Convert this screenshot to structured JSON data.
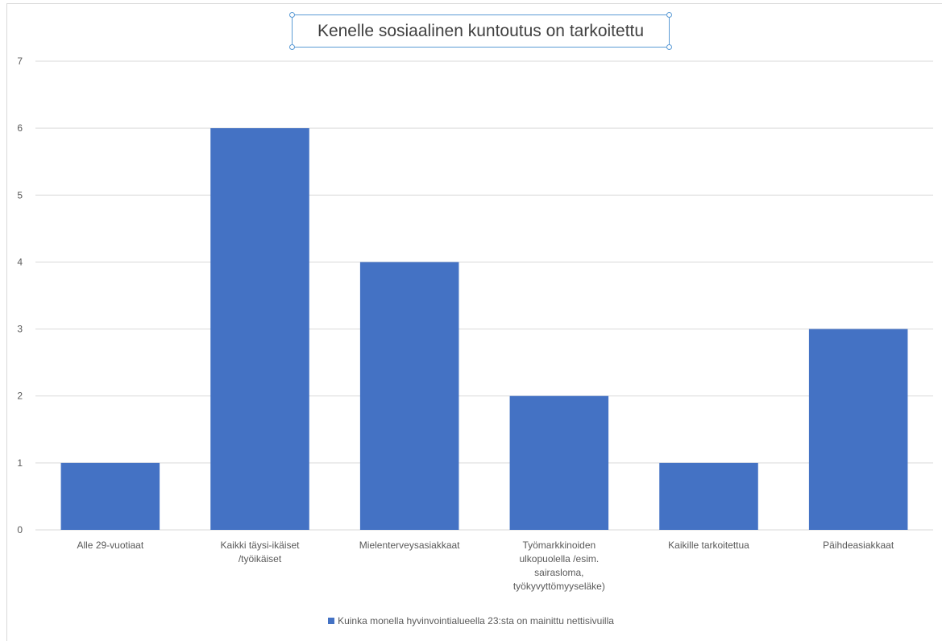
{
  "chart_data": {
    "type": "bar",
    "title": "Kenelle sosiaalinen kuntoutus on tarkoitettu",
    "categories": [
      [
        "Alle 29-vuotiaat"
      ],
      [
        "Kaikki täysi-ikäiset",
        "/työikäiset"
      ],
      [
        "Mielenterveysasiakkaat"
      ],
      [
        "Työmarkkinoiden",
        "ulkopuolella /esim.",
        "sairasloma,",
        "työkyvyttömyyseläke)"
      ],
      [
        "Kaikille tarkoitettua"
      ],
      [
        "Päihdeasiakkaat"
      ]
    ],
    "series": [
      {
        "name": "Kuinka monella hyvinvointialueella 23:sta on mainittu nettisivuilla",
        "values": [
          1,
          6,
          4,
          2,
          1,
          3
        ],
        "color": "#4472c4"
      }
    ],
    "ylim": [
      0,
      7
    ],
    "yticks": [
      "0",
      "1",
      "2",
      "3",
      "4",
      "5",
      "6",
      "7"
    ],
    "grid": true,
    "legend_position": "bottom"
  }
}
